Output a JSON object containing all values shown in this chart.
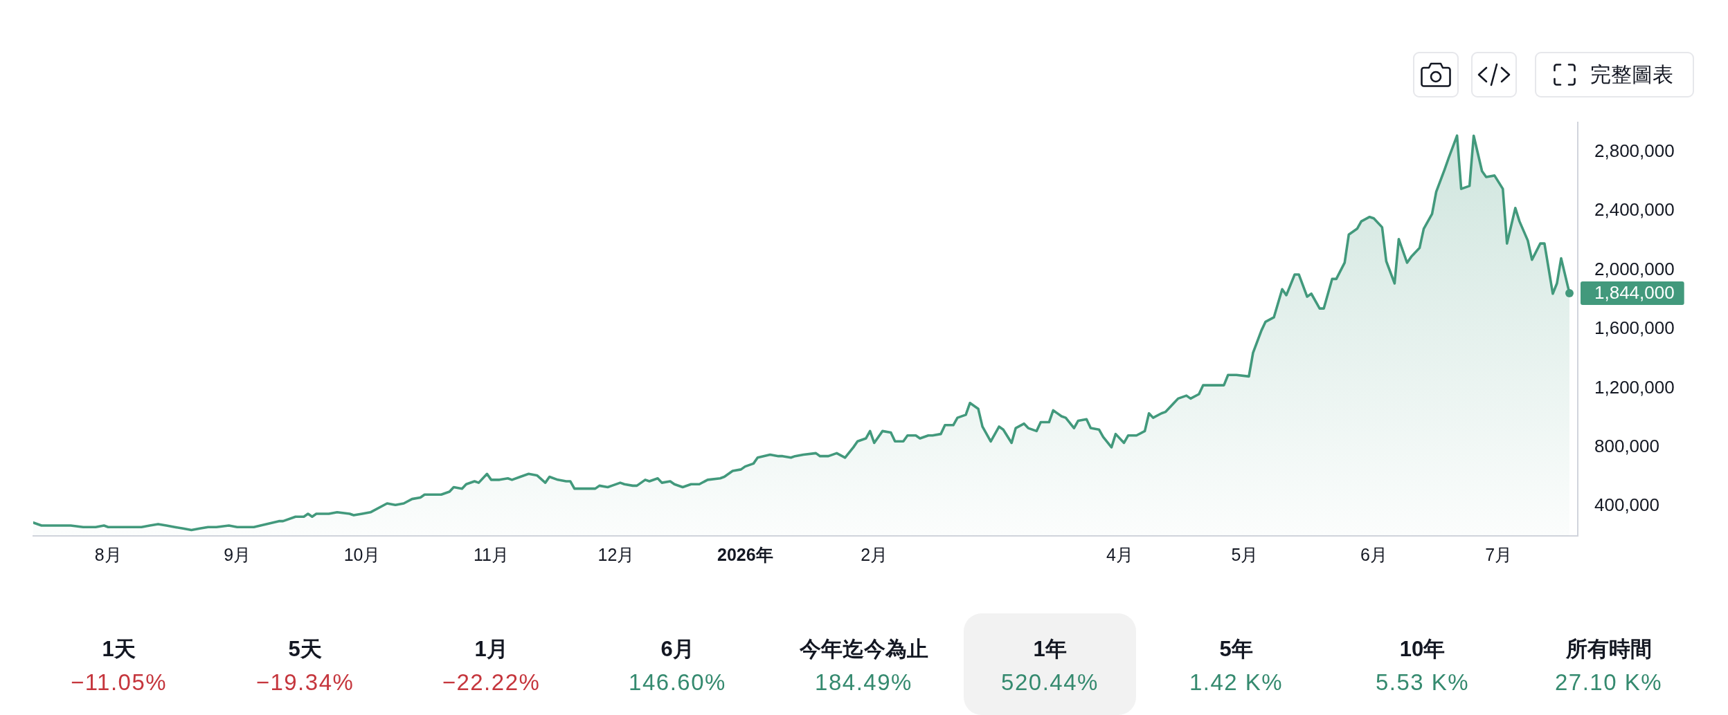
{
  "chart_data": [
    {
      "type": "area",
      "color": "#42997c",
      "x": [
        "2025-07-14",
        "2025-07-16",
        "2025-07-18",
        "2025-07-23",
        "2025-07-26",
        "2025-07-29",
        "2025-07-31",
        "2025-08-01",
        "2025-08-04",
        "2025-08-07",
        "2025-08-09",
        "2025-08-11",
        "2025-08-13",
        "2025-08-15",
        "2025-08-17",
        "2025-08-19",
        "2025-08-21",
        "2025-08-23",
        "2025-08-25",
        "2025-08-27",
        "2025-08-30",
        "2025-09-01",
        "2025-09-03",
        "2025-09-05",
        "2025-09-08",
        "2025-09-11",
        "2025-09-12",
        "2025-09-15",
        "2025-09-17",
        "2025-09-18",
        "2025-09-19",
        "2025-09-20",
        "2025-09-23",
        "2025-09-25",
        "2025-09-28",
        "2025-09-29",
        "2025-10-01",
        "2025-10-03",
        "2025-10-07",
        "2025-10-09",
        "2025-10-11",
        "2025-10-13",
        "2025-10-15",
        "2025-10-16",
        "2025-10-18",
        "2025-10-20",
        "2025-10-22",
        "2025-10-23",
        "2025-10-25",
        "2025-10-26",
        "2025-10-28",
        "2025-10-29",
        "2025-10-31",
        "2025-11-01",
        "2025-11-03",
        "2025-11-05",
        "2025-11-06",
        "2025-11-08",
        "2025-11-10",
        "2025-11-12",
        "2025-11-14",
        "2025-11-15",
        "2025-11-17",
        "2025-11-19",
        "2025-11-20",
        "2025-11-21",
        "2025-11-24",
        "2025-11-26",
        "2025-11-27",
        "2025-11-29",
        "2025-11-30",
        "2025-12-02",
        "2025-12-03",
        "2025-12-05",
        "2025-12-06",
        "2025-12-08",
        "2025-12-09",
        "2025-12-11",
        "2025-12-12",
        "2025-12-14",
        "2025-12-15",
        "2025-12-17",
        "2025-12-19",
        "2025-12-21",
        "2025-12-23",
        "2025-12-26",
        "2025-12-27",
        "2025-12-29",
        "2025-12-31",
        "2026-01-01",
        "2026-01-03",
        "2026-01-04",
        "2026-01-07",
        "2026-01-09",
        "2026-01-10",
        "2026-01-12",
        "2026-01-13",
        "2026-01-15",
        "2026-01-18",
        "2026-01-19",
        "2026-01-21",
        "2026-01-23",
        "2026-01-25",
        "2026-01-27",
        "2026-01-28",
        "2026-01-30",
        "2026-01-31",
        "2026-02-01",
        "2026-02-03",
        "2026-02-05",
        "2026-02-06",
        "2026-02-08",
        "2026-02-09",
        "2026-02-11",
        "2026-02-12",
        "2026-02-14",
        "2026-02-15",
        "2026-02-17",
        "2026-02-18",
        "2026-02-20",
        "2026-02-21",
        "2026-02-23",
        "2026-02-24",
        "2026-02-26",
        "2026-02-27",
        "2026-03-01",
        "2026-03-03",
        "2026-03-04",
        "2026-03-06",
        "2026-03-07",
        "2026-03-09",
        "2026-03-10",
        "2026-03-12",
        "2026-03-13",
        "2026-03-15",
        "2026-03-16",
        "2026-03-18",
        "2026-03-19",
        "2026-03-21",
        "2026-03-22",
        "2026-03-24",
        "2026-03-25",
        "2026-03-27",
        "2026-03-28",
        "2026-03-30",
        "2026-03-31",
        "2026-04-02",
        "2026-04-03",
        "2026-04-05",
        "2026-04-07",
        "2026-04-08",
        "2026-04-09",
        "2026-04-11",
        "2026-04-12",
        "2026-04-14",
        "2026-04-15",
        "2026-04-17",
        "2026-04-18",
        "2026-04-20",
        "2026-04-21",
        "2026-04-23",
        "2026-04-26",
        "2026-04-27",
        "2026-04-29",
        "2026-05-02",
        "2026-05-03",
        "2026-05-05",
        "2026-05-06",
        "2026-05-08",
        "2026-05-10",
        "2026-05-11",
        "2026-05-13",
        "2026-05-14",
        "2026-05-16",
        "2026-05-17",
        "2026-05-19",
        "2026-05-20",
        "2026-05-22",
        "2026-05-23",
        "2026-05-25",
        "2026-05-26",
        "2026-05-28",
        "2026-05-29",
        "2026-05-31",
        "2026-06-01",
        "2026-06-03",
        "2026-06-04",
        "2026-06-06",
        "2026-06-07",
        "2026-06-09",
        "2026-06-10",
        "2026-06-12",
        "2026-06-13",
        "2026-06-15",
        "2026-06-16",
        "2026-06-18",
        "2026-06-19",
        "2026-06-21",
        "2026-06-22",
        "2026-06-24",
        "2026-06-25",
        "2026-06-27",
        "2026-06-28",
        "2026-06-30",
        "2026-07-02",
        "2026-07-03",
        "2026-07-05",
        "2026-07-06",
        "2026-07-08",
        "2026-07-09",
        "2026-07-11",
        "2026-07-12",
        "2026-07-14",
        "2026-07-15",
        "2026-07-16",
        "2026-07-18"
      ],
      "values": [
        290000,
        270000,
        270000,
        270000,
        260000,
        260000,
        270000,
        260000,
        260000,
        260000,
        260000,
        270000,
        280000,
        270000,
        260000,
        250000,
        240000,
        250000,
        260000,
        260000,
        270000,
        260000,
        260000,
        260000,
        280000,
        300000,
        300000,
        330000,
        330000,
        350000,
        330000,
        350000,
        350000,
        360000,
        350000,
        340000,
        350000,
        360000,
        420000,
        410000,
        420000,
        450000,
        460000,
        480000,
        480000,
        480000,
        500000,
        530000,
        520000,
        550000,
        570000,
        560000,
        620000,
        580000,
        580000,
        590000,
        580000,
        600000,
        620000,
        610000,
        560000,
        600000,
        580000,
        570000,
        570000,
        520000,
        520000,
        520000,
        540000,
        530000,
        540000,
        560000,
        550000,
        540000,
        540000,
        580000,
        570000,
        590000,
        560000,
        570000,
        550000,
        530000,
        550000,
        550000,
        580000,
        590000,
        600000,
        640000,
        650000,
        670000,
        690000,
        730000,
        750000,
        740000,
        740000,
        730000,
        740000,
        750000,
        760000,
        740000,
        740000,
        760000,
        730000,
        800000,
        840000,
        860000,
        910000,
        830000,
        910000,
        900000,
        840000,
        840000,
        880000,
        880000,
        860000,
        880000,
        880000,
        890000,
        950000,
        950000,
        1000000,
        1020000,
        1100000,
        1060000,
        940000,
        840000,
        940000,
        920000,
        830000,
        930000,
        960000,
        930000,
        910000,
        970000,
        970000,
        1050000,
        1010000,
        1000000,
        930000,
        980000,
        990000,
        930000,
        920000,
        870000,
        800000,
        890000,
        830000,
        880000,
        880000,
        910000,
        1030000,
        1000000,
        1030000,
        1040000,
        1100000,
        1130000,
        1150000,
        1130000,
        1160000,
        1220000,
        1220000,
        1220000,
        1290000,
        1290000,
        1280000,
        1440000,
        1590000,
        1650000,
        1680000,
        1870000,
        1830000,
        1970000,
        1970000,
        1820000,
        1840000,
        1740000,
        1740000,
        1940000,
        1940000,
        2050000,
        2240000,
        2280000,
        2330000,
        2360000,
        2350000,
        2290000,
        2060000,
        1910000,
        2210000,
        2050000,
        2090000,
        2150000,
        2280000,
        2380000,
        2530000,
        2680000,
        2760000,
        2910000,
        2550000,
        2570000,
        2910000,
        2670000,
        2630000,
        2640000,
        2550000,
        2180000,
        2420000,
        2330000,
        2200000,
        2070000,
        2180000,
        2180000,
        1840000,
        1910000,
        2080000,
        1844000
      ],
      "value_labels": [
        null,
        null,
        null,
        null,
        null,
        null,
        null,
        null,
        null,
        null,
        null,
        null,
        null,
        null,
        null,
        null,
        null,
        null,
        null,
        null,
        null,
        null,
        null,
        null,
        null,
        null,
        null,
        null,
        null,
        null,
        null,
        null,
        null,
        null,
        null,
        null,
        null,
        null,
        null,
        null,
        null,
        null,
        null,
        null,
        null,
        null,
        null,
        null,
        null,
        null,
        null,
        null,
        null,
        null,
        null,
        null,
        null,
        null,
        null,
        null,
        null,
        null,
        null,
        null,
        null,
        null,
        null,
        null,
        null,
        null,
        null,
        null,
        null,
        null,
        null,
        null,
        null,
        null,
        null,
        null,
        null,
        null,
        null,
        null,
        null,
        null,
        null,
        null,
        null,
        null,
        null,
        null,
        null,
        null,
        null,
        null,
        null,
        null,
        null,
        null,
        null,
        null,
        null,
        null,
        null,
        null,
        null,
        null,
        null,
        null,
        null,
        null,
        null,
        null,
        null,
        null,
        null,
        null,
        null,
        null,
        null,
        null,
        null,
        null,
        null,
        null,
        null,
        null,
        null,
        null,
        null,
        null,
        null,
        null,
        null,
        null,
        null,
        null,
        null,
        null,
        null,
        null,
        null,
        null,
        null,
        null,
        null,
        null,
        null,
        null,
        null,
        null,
        null,
        null,
        null,
        null,
        null,
        null,
        null,
        null,
        null,
        null,
        null,
        null,
        null,
        null,
        null,
        null,
        null,
        null,
        null,
        null,
        null,
        null,
        null,
        null,
        null,
        null,
        null,
        null,
        null,
        null,
        null,
        null,
        null,
        null,
        null,
        null,
        null,
        null,
        null,
        null,
        null,
        null,
        null,
        null,
        null,
        null,
        null,
        null,
        null,
        null,
        null,
        null,
        null,
        null,
        null,
        null,
        null,
        null,
        null,
        null,
        null,
        null,
        null,
        "1,844,000"
      ],
      "xlim": [
        "2025-07-14",
        "2026-07-20"
      ],
      "xticks": [
        {
          "value": "2025-08-01",
          "label": "8月"
        },
        {
          "value": "2025-09-01",
          "label": "9月"
        },
        {
          "value": "2025-10-01",
          "label": "10月"
        },
        {
          "value": "2025-11-01",
          "label": "11月"
        },
        {
          "value": "2025-12-01",
          "label": "12月"
        },
        {
          "value": "2026-01-01",
          "label": "2026年"
        },
        {
          "value": "2026-02-01",
          "label": "2月"
        },
        {
          "value": "2026-04-01",
          "label": "4月"
        },
        {
          "value": "2026-05-01",
          "label": "5月"
        },
        {
          "value": "2026-06-01",
          "label": "6月"
        },
        {
          "value": "2026-07-01",
          "label": "7月"
        }
      ],
      "ylim": [
        200000,
        3000000
      ],
      "yticks": [
        {
          "value": 400000,
          "label": "400,000"
        },
        {
          "value": 800000,
          "label": "800,000"
        },
        {
          "value": 1200000,
          "label": "1,200,000"
        },
        {
          "value": 1600000,
          "label": "1,600,000"
        },
        {
          "value": 2000000,
          "label": "2,000,000"
        },
        {
          "value": 2400000,
          "label": "2,400,000"
        },
        {
          "value": 2800000,
          "label": "2,800,000"
        }
      ],
      "annotations": [
        "完整圖表"
      ]
    },
    {
      "type": "other",
      "categories": [
        "1天",
        "5天",
        "1月",
        "6月",
        "今年迄今為止",
        "1年",
        "5年",
        "10年",
        "所有時間"
      ],
      "value_labels": [
        "−11.05%",
        "−19.34%",
        "−22.22%",
        "146.60%",
        "184.49%",
        "520.44%",
        "1.42 K%",
        "5.53 K%",
        "27.10 K%"
      ],
      "colors": [
        "#c5363d",
        "#c5363d",
        "#c5363d",
        "#358a6f",
        "#358a6f",
        "#358a6f",
        "#358a6f",
        "#358a6f",
        "#358a6f"
      ]
    }
  ]
}
